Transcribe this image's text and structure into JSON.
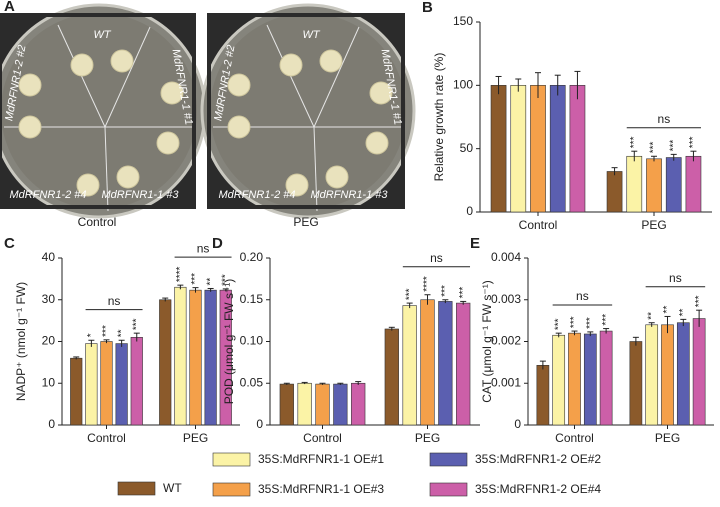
{
  "photos": {
    "panel": "A",
    "plates": [
      {
        "caption": "Control",
        "labels": [
          "WT",
          "MdRFNR1-2 #2",
          "MdRFNR1-1 #1",
          "MdRFNR1-2 #4",
          "MdRFNR1-1 #3"
        ]
      },
      {
        "caption": "PEG",
        "labels": [
          "WT",
          "MdRFNR1-2 #2",
          "MdRFNR1-1 #1",
          "MdRFNR1-2 #4",
          "MdRFNR1-1 #3"
        ]
      }
    ]
  },
  "chart_data": [
    {
      "type": "bar",
      "panel": "B",
      "y_label": "Relative growth rate (%)",
      "categories": [
        "Control",
        "PEG"
      ],
      "ylim": [
        0,
        150
      ],
      "yticks": [
        0,
        50,
        100,
        150
      ],
      "brackets": [
        null,
        "ns"
      ],
      "series": [
        {
          "name": "WT",
          "color": "#8b5a2b",
          "values": [
            100,
            32
          ],
          "errors": [
            7,
            3
          ]
        },
        {
          "name": "35S:MdRFNR1-1 OE#1",
          "color": "#fbf3a6",
          "values": [
            100,
            44
          ],
          "errors": [
            5,
            4
          ],
          "significance": [
            null,
            "***"
          ]
        },
        {
          "name": "35S:MdRFNR1-1 OE#3",
          "color": "#f4a04a",
          "values": [
            100,
            42
          ],
          "errors": [
            10,
            2
          ],
          "significance": [
            null,
            "***"
          ]
        },
        {
          "name": "35S:MdRFNR1-2 OE#2",
          "color": "#5b5fb0",
          "values": [
            100,
            43
          ],
          "errors": [
            8,
            2.5
          ],
          "significance": [
            null,
            "***"
          ]
        },
        {
          "name": "35S:MdRFNR1-2 OE#4",
          "color": "#cc5fa8",
          "values": [
            100,
            44
          ],
          "errors": [
            11,
            4
          ],
          "significance": [
            null,
            "***"
          ]
        }
      ]
    },
    {
      "type": "bar",
      "panel": "C",
      "y_label": "NADP⁺ (nmol g⁻¹ FW)",
      "categories": [
        "Control",
        "PEG"
      ],
      "ylim": [
        0,
        40
      ],
      "yticks": [
        0,
        10,
        20,
        30,
        40
      ],
      "brackets": [
        "ns",
        "ns"
      ],
      "series": [
        {
          "name": "WT",
          "color": "#8b5a2b",
          "values": [
            16,
            30
          ],
          "errors": [
            0.3,
            0.4
          ]
        },
        {
          "name": "35S:MdRFNR1-1 OE#1",
          "color": "#fbf3a6",
          "values": [
            19.5,
            33
          ],
          "errors": [
            0.8,
            0.5
          ],
          "significance": [
            "*",
            "****"
          ]
        },
        {
          "name": "35S:MdRFNR1-1 OE#3",
          "color": "#f4a04a",
          "values": [
            20,
            32.3
          ],
          "errors": [
            0.4,
            0.6
          ],
          "significance": [
            "***",
            "***"
          ]
        },
        {
          "name": "35S:MdRFNR1-2 OE#2",
          "color": "#5b5fb0",
          "values": [
            19.5,
            32.3
          ],
          "errors": [
            0.8,
            0.4
          ],
          "significance": [
            "**",
            "**"
          ]
        },
        {
          "name": "35S:MdRFNR1-2 OE#4",
          "color": "#cc5fa8",
          "values": [
            21,
            32.3
          ],
          "errors": [
            1,
            0.3
          ],
          "significance": [
            "***",
            "***"
          ]
        }
      ]
    },
    {
      "type": "bar",
      "panel": "D",
      "y_label": "POD (μmol g⁻¹ FW s⁻¹)",
      "categories": [
        "Control",
        "PEG"
      ],
      "ylim": [
        0,
        0.2
      ],
      "yticks": [
        0,
        0.05,
        {
          "value": 0.1,
          "label": "0.10"
        },
        0.15,
        {
          "value": 0.2,
          "label": "0.20"
        }
      ],
      "brackets": [
        null,
        "ns"
      ],
      "series": [
        {
          "name": "WT",
          "color": "#8b5a2b",
          "values": [
            0.049,
            0.115
          ],
          "errors": [
            0.001,
            0.002
          ]
        },
        {
          "name": "35S:MdRFNR1-1 OE#1",
          "color": "#fbf3a6",
          "values": [
            0.05,
            0.143
          ],
          "errors": [
            0.001,
            0.003
          ],
          "significance": [
            null,
            "***"
          ]
        },
        {
          "name": "35S:MdRFNR1-1 OE#3",
          "color": "#f4a04a",
          "values": [
            0.049,
            0.15
          ],
          "errors": [
            0.001,
            0.006
          ],
          "significance": [
            null,
            "****"
          ]
        },
        {
          "name": "35S:MdRFNR1-2 OE#2",
          "color": "#5b5fb0",
          "values": [
            0.049,
            0.148
          ],
          "errors": [
            0.001,
            0.002
          ],
          "significance": [
            null,
            "***"
          ]
        },
        {
          "name": "35S:MdRFNR1-2 OE#4",
          "color": "#cc5fa8",
          "values": [
            0.05,
            0.146
          ],
          "errors": [
            0.002,
            0.002
          ],
          "significance": [
            null,
            "***"
          ]
        }
      ]
    },
    {
      "type": "bar",
      "panel": "E",
      "y_label": "CAT (μmol g⁻¹ FW s⁻¹)",
      "categories": [
        "Control",
        "PEG"
      ],
      "ylim": [
        0,
        0.004
      ],
      "yticks": [
        0,
        0.001,
        0.002,
        0.003,
        0.004
      ],
      "brackets": [
        "ns",
        "ns"
      ],
      "series": [
        {
          "name": "WT",
          "color": "#8b5a2b",
          "values": [
            0.00143,
            0.002
          ],
          "errors": [
            0.0001,
            0.0001
          ]
        },
        {
          "name": "35S:MdRFNR1-1 OE#1",
          "color": "#fbf3a6",
          "values": [
            0.00215,
            0.0024
          ],
          "errors": [
            5e-05,
            5e-05
          ],
          "significance": [
            "***",
            "**"
          ]
        },
        {
          "name": "35S:MdRFNR1-1 OE#3",
          "color": "#f4a04a",
          "values": [
            0.0022,
            0.0024
          ],
          "errors": [
            5e-05,
            0.0002
          ],
          "significance": [
            "***",
            "**"
          ]
        },
        {
          "name": "35S:MdRFNR1-2 OE#2",
          "color": "#5b5fb0",
          "values": [
            0.00218,
            0.00245
          ],
          "errors": [
            5e-05,
            8e-05
          ],
          "significance": [
            "***",
            "**"
          ]
        },
        {
          "name": "35S:MdRFNR1-2 OE#4",
          "color": "#cc5fa8",
          "values": [
            0.00225,
            0.00255
          ],
          "errors": [
            6e-05,
            0.0002
          ],
          "significance": [
            "***",
            "***"
          ]
        }
      ]
    }
  ]
}
